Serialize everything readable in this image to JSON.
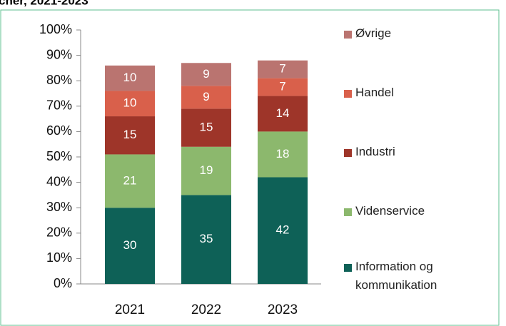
{
  "chart_data": {
    "type": "stacked_bar",
    "title": "cher, 2021-2023",
    "categories": [
      "2021",
      "2022",
      "2023"
    ],
    "series": [
      {
        "name": "Information og kommunikation",
        "color": "#0e6157",
        "values": [
          30,
          35,
          42
        ]
      },
      {
        "name": "Videnservice",
        "color": "#8cb86d",
        "values": [
          21,
          19,
          18
        ]
      },
      {
        "name": "Industri",
        "color": "#9e3529",
        "values": [
          15,
          15,
          14
        ]
      },
      {
        "name": "Handel",
        "color": "#d9604b",
        "values": [
          10,
          9,
          7
        ]
      },
      {
        "name": "Øvrige",
        "color": "#ba7470",
        "values": [
          10,
          9,
          7
        ]
      }
    ],
    "ylim": [
      0,
      100
    ],
    "yticks": [
      {
        "value": 0,
        "label": "0%"
      },
      {
        "value": 10,
        "label": "10%"
      },
      {
        "value": 20,
        "label": "20%"
      },
      {
        "value": 30,
        "label": "30%"
      },
      {
        "value": 40,
        "label": "40%"
      },
      {
        "value": 50,
        "label": "50%"
      },
      {
        "value": 60,
        "label": "60%"
      },
      {
        "value": 70,
        "label": "70%"
      },
      {
        "value": 80,
        "label": "80%"
      },
      {
        "value": 90,
        "label": "90%"
      },
      {
        "value": 100,
        "label": "100%"
      }
    ]
  }
}
